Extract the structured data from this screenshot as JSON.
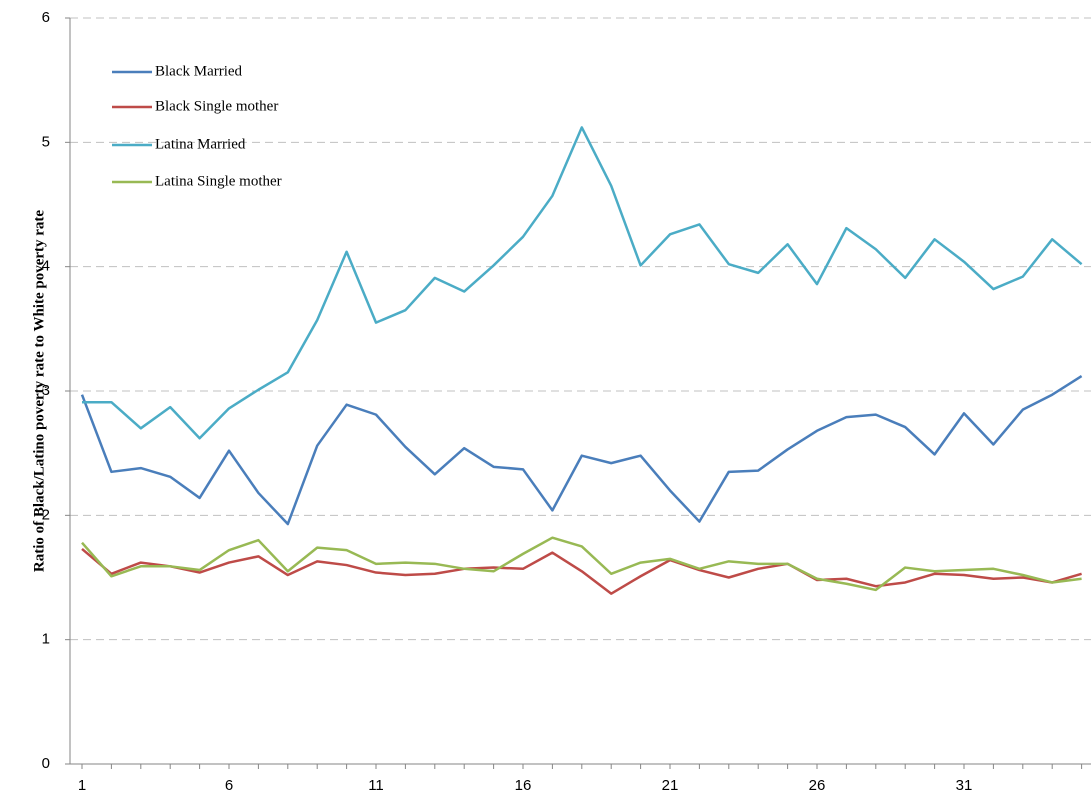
{
  "chart_data": {
    "type": "line",
    "y_label": "Ratio of Black/Latino poverty rate to White poverty rate",
    "categories": [
      "1",
      null,
      null,
      null,
      null,
      "6",
      null,
      null,
      null,
      null,
      "11",
      null,
      null,
      null,
      null,
      "16",
      null,
      null,
      null,
      null,
      "21",
      null,
      null,
      null,
      null,
      "26",
      null,
      null,
      null,
      null,
      "31",
      null,
      null,
      null,
      null
    ],
    "series": [
      {
        "name": "Black Married",
        "color": "#4a7ebb",
        "values": [
          2.97,
          2.35,
          2.38,
          2.31,
          2.14,
          2.52,
          2.18,
          1.93,
          2.56,
          2.89,
          2.81,
          2.55,
          2.33,
          2.54,
          2.39,
          2.37,
          2.04,
          2.48,
          2.42,
          2.48,
          2.2,
          1.95,
          2.35,
          2.36,
          2.53,
          2.68,
          2.79,
          2.81,
          2.71,
          2.49,
          2.82,
          2.57,
          2.85,
          2.97,
          3.12
        ]
      },
      {
        "name": "Black Single mother",
        "color": "#be4b48",
        "values": [
          1.73,
          1.53,
          1.62,
          1.59,
          1.54,
          1.62,
          1.67,
          1.52,
          1.63,
          1.6,
          1.54,
          1.52,
          1.53,
          1.57,
          1.58,
          1.57,
          1.7,
          1.55,
          1.37,
          1.51,
          1.64,
          1.56,
          1.5,
          1.57,
          1.61,
          1.48,
          1.49,
          1.43,
          1.46,
          1.53,
          1.52,
          1.49,
          1.5,
          1.46,
          1.53
        ]
      },
      {
        "name": "Latina Married",
        "color": "#4bacc6",
        "values": [
          2.91,
          2.91,
          2.7,
          2.87,
          2.62,
          2.86,
          3.01,
          3.15,
          3.57,
          4.12,
          3.55,
          3.65,
          3.91,
          3.8,
          4.01,
          4.24,
          4.57,
          5.12,
          4.65,
          4.01,
          4.26,
          4.34,
          4.02,
          3.95,
          4.18,
          3.86,
          4.31,
          4.14,
          3.91,
          4.22,
          4.04,
          3.82,
          3.92,
          4.22,
          4.02
        ]
      },
      {
        "name": "Latina Single mother",
        "color": "#98b954",
        "values": [
          1.78,
          1.51,
          1.59,
          1.59,
          1.56,
          1.72,
          1.8,
          1.55,
          1.74,
          1.72,
          1.61,
          1.62,
          1.61,
          1.57,
          1.55,
          1.69,
          1.82,
          1.75,
          1.53,
          1.62,
          1.65,
          1.57,
          1.63,
          1.61,
          1.61,
          1.49,
          1.45,
          1.4,
          1.58,
          1.55,
          1.56,
          1.57,
          1.52,
          1.46,
          1.49
        ]
      }
    ],
    "ylim": [
      0,
      6
    ],
    "yticks": [
      0,
      1,
      2,
      3,
      4,
      5,
      6
    ],
    "grid": true,
    "legend": "top-left"
  }
}
